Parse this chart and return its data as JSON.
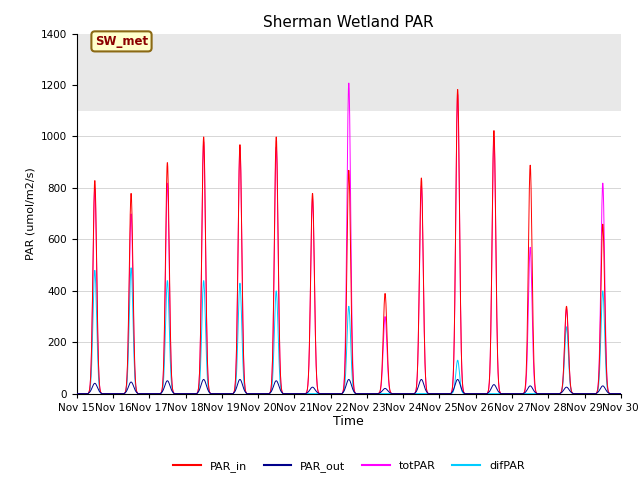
{
  "title": "Sherman Wetland PAR",
  "ylabel": "PAR (umol/m2/s)",
  "xlabel": "Time",
  "ylim": [
    0,
    1400
  ],
  "legend_label": "SW_met",
  "line_colors": {
    "PAR_in": "#ff0000",
    "PAR_out": "#00008b",
    "totPAR": "#ff00ff",
    "difPAR": "#00ccff"
  },
  "background_color": "#ffffff",
  "gray_band_color": "#e8e8e8",
  "gray_band": [
    1100,
    1400
  ],
  "day_peaks": {
    "Nov15": {
      "PAR_in": 830,
      "totPAR": 800,
      "difPAR": 480,
      "PAR_out": 40
    },
    "Nov16": {
      "PAR_in": 780,
      "totPAR": 700,
      "difPAR": 490,
      "PAR_out": 45
    },
    "Nov17": {
      "PAR_in": 900,
      "totPAR": 820,
      "difPAR": 440,
      "PAR_out": 50
    },
    "Nov18": {
      "PAR_in": 1000,
      "totPAR": 980,
      "difPAR": 440,
      "PAR_out": 55
    },
    "Nov19": {
      "PAR_in": 970,
      "totPAR": 960,
      "difPAR": 430,
      "PAR_out": 55
    },
    "Nov20": {
      "PAR_in": 1000,
      "totPAR": 960,
      "difPAR": 400,
      "PAR_out": 50
    },
    "Nov21": {
      "PAR_in": 780,
      "totPAR": 760,
      "difPAR": 0,
      "PAR_out": 25
    },
    "Nov22": {
      "PAR_in": 870,
      "totPAR": 1210,
      "difPAR": 340,
      "PAR_out": 55
    },
    "Nov23": {
      "PAR_in": 390,
      "totPAR": 300,
      "difPAR": 0,
      "PAR_out": 20
    },
    "Nov24": {
      "PAR_in": 840,
      "totPAR": 810,
      "difPAR": 0,
      "PAR_out": 55
    },
    "Nov25": {
      "PAR_in": 1185,
      "totPAR": 1165,
      "difPAR": 130,
      "PAR_out": 55
    },
    "Nov26": {
      "PAR_in": 1025,
      "totPAR": 1000,
      "difPAR": 0,
      "PAR_out": 35
    },
    "Nov27": {
      "PAR_in": 890,
      "totPAR": 570,
      "difPAR": 0,
      "PAR_out": 30
    },
    "Nov28": {
      "PAR_in": 340,
      "totPAR": 330,
      "difPAR": 260,
      "PAR_out": 25
    },
    "Nov29": {
      "PAR_in": 660,
      "totPAR": 820,
      "difPAR": 400,
      "PAR_out": 30
    }
  },
  "title_fontsize": 11,
  "tick_fontsize": 7.5,
  "ylabel_fontsize": 8,
  "xlabel_fontsize": 9,
  "legend_fontsize": 8
}
